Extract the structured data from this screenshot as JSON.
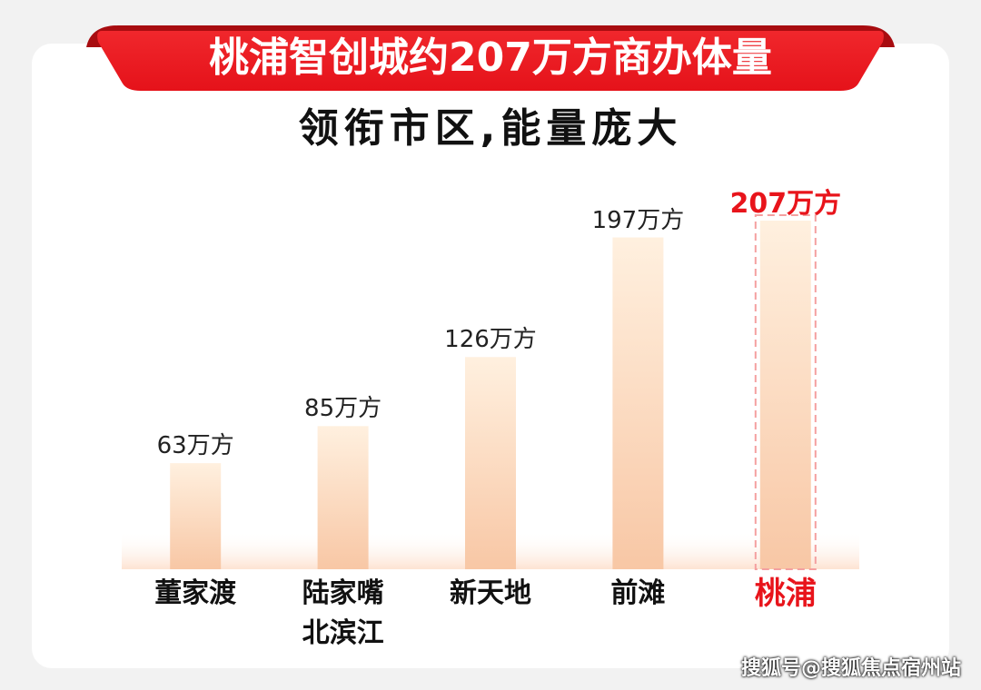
{
  "chart_data": {
    "type": "bar",
    "title": "桃浦智创城约207万方商办体量",
    "subtitle": "领衔市区,能量庞大",
    "categories": [
      "董家渡",
      "陆家嘴\n北滨江",
      "新天地",
      "前滩",
      "桃浦"
    ],
    "values": [
      63,
      85,
      126,
      197,
      207
    ],
    "value_labels": [
      "63万方",
      "85万方",
      "126万方",
      "197万方",
      "207万方"
    ],
    "color": "#f8cba9",
    "highlight_index": 4,
    "highlight_color": "#e8141b",
    "ylim": [
      0,
      207
    ],
    "grid": false
  },
  "watermark": "搜狐号@搜狐焦点宿州站"
}
